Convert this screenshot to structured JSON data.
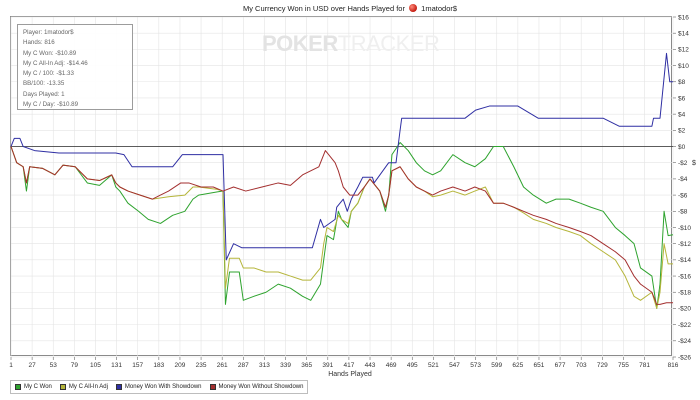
{
  "header": {
    "title_prefix": "My Currency Won in USD over Hands Played for",
    "player_name": "1matodor$"
  },
  "watermark": {
    "part1": "POKER",
    "part2": "TRACKER"
  },
  "stats": [
    "Player: 1matodor$",
    "Hands: 816",
    "My C Won: -$10.89",
    "My C All-In Adj: -$14.46",
    "My C / 100: -$1.33",
    "BB/100: -13.35",
    "Days Played: 1",
    "My C / Day: -$10.89"
  ],
  "colors": {
    "my_c_won": "#2ea32e",
    "all_in_adj": "#b5b53a",
    "with_showdown": "#2f2fa3",
    "without_showdown": "#a32f2f"
  },
  "chart_data": {
    "type": "line",
    "title": "My Currency Won in USD over Hands Played for 1matodor$",
    "xlabel": "Hands Played",
    "ylabel": "$",
    "xlim": [
      1,
      816
    ],
    "ylim": [
      -26,
      16
    ],
    "grid": true,
    "legend_position": "bottom",
    "x_ticks": [
      1,
      27,
      53,
      79,
      105,
      131,
      157,
      183,
      209,
      235,
      261,
      287,
      313,
      339,
      365,
      391,
      417,
      443,
      469,
      495,
      521,
      547,
      573,
      599,
      625,
      651,
      677,
      703,
      729,
      755,
      781,
      816
    ],
    "y_ticks": [
      16,
      14,
      12,
      10,
      8,
      6,
      4,
      2,
      0,
      -2,
      -4,
      -6,
      -8,
      -10,
      -12,
      -14,
      -16,
      -18,
      -20,
      -22,
      -24,
      -26
    ],
    "y_tick_labels": [
      "$16",
      "$14",
      "$12",
      "$10",
      "$8",
      "$6",
      "$4",
      "$2",
      "$0",
      "-$2",
      "-$4",
      "-$6",
      "-$8",
      "-$10",
      "-$12",
      "-$14",
      "-$16",
      "-$18",
      "-$20",
      "-$22",
      "-$24",
      "-$26"
    ],
    "series": [
      {
        "name": "My C Won",
        "color_key": "my_c_won",
        "points": [
          [
            1,
            0
          ],
          [
            8,
            -2
          ],
          [
            16,
            -2.5
          ],
          [
            20,
            -5.5
          ],
          [
            24,
            -2.5
          ],
          [
            40,
            -2.7
          ],
          [
            55,
            -3.5
          ],
          [
            65,
            -2.3
          ],
          [
            80,
            -2.5
          ],
          [
            95,
            -4.5
          ],
          [
            110,
            -4.8
          ],
          [
            125,
            -3.5
          ],
          [
            130,
            -5
          ],
          [
            135,
            -5.5
          ],
          [
            145,
            -7
          ],
          [
            158,
            -8
          ],
          [
            170,
            -9
          ],
          [
            185,
            -9.5
          ],
          [
            200,
            -8.5
          ],
          [
            215,
            -8
          ],
          [
            225,
            -6.5
          ],
          [
            232,
            -6
          ],
          [
            255,
            -5.6
          ],
          [
            262,
            -5.5
          ],
          [
            265,
            -19.5
          ],
          [
            270,
            -15.5
          ],
          [
            282,
            -15.5
          ],
          [
            287,
            -19
          ],
          [
            300,
            -18.5
          ],
          [
            315,
            -18
          ],
          [
            330,
            -17
          ],
          [
            345,
            -17.5
          ],
          [
            360,
            -18.5
          ],
          [
            370,
            -19
          ],
          [
            382,
            -17
          ],
          [
            386,
            -14
          ],
          [
            390,
            -11
          ],
          [
            398,
            -11.5
          ],
          [
            404,
            -8
          ],
          [
            408,
            -9
          ],
          [
            416,
            -10
          ],
          [
            420,
            -8
          ],
          [
            428,
            -7
          ],
          [
            436,
            -5
          ],
          [
            443,
            -4
          ],
          [
            455,
            -5.5
          ],
          [
            462,
            -8
          ],
          [
            466,
            -6
          ],
          [
            470,
            -1
          ],
          [
            480,
            0.5
          ],
          [
            490,
            -0.5
          ],
          [
            500,
            -2
          ],
          [
            510,
            -3
          ],
          [
            520,
            -3.5
          ],
          [
            530,
            -3
          ],
          [
            545,
            -1
          ],
          [
            560,
            -2
          ],
          [
            572,
            -2.5
          ],
          [
            585,
            -1.5
          ],
          [
            595,
            0
          ],
          [
            607,
            0
          ],
          [
            620,
            -2.5
          ],
          [
            632,
            -5
          ],
          [
            644,
            -6
          ],
          [
            660,
            -7
          ],
          [
            672,
            -6.5
          ],
          [
            688,
            -6.5
          ],
          [
            702,
            -7
          ],
          [
            715,
            -7.5
          ],
          [
            730,
            -8
          ],
          [
            745,
            -10
          ],
          [
            757,
            -11
          ],
          [
            768,
            -12
          ],
          [
            776,
            -15
          ],
          [
            790,
            -16
          ],
          [
            796,
            -20
          ],
          [
            800,
            -17
          ],
          [
            805,
            -8
          ],
          [
            810,
            -11
          ],
          [
            816,
            -10.9
          ]
        ]
      },
      {
        "name": "My C All-In Adj",
        "color_key": "all_in_adj",
        "points": [
          [
            1,
            0
          ],
          [
            8,
            -2
          ],
          [
            16,
            -2.5
          ],
          [
            20,
            -4.5
          ],
          [
            24,
            -2.5
          ],
          [
            40,
            -2.7
          ],
          [
            55,
            -3.5
          ],
          [
            65,
            -2.3
          ],
          [
            80,
            -2.5
          ],
          [
            95,
            -4
          ],
          [
            110,
            -4.2
          ],
          [
            125,
            -3.5
          ],
          [
            130,
            -4.5
          ],
          [
            135,
            -5
          ],
          [
            145,
            -5.5
          ],
          [
            160,
            -6
          ],
          [
            175,
            -6.5
          ],
          [
            195,
            -6.2
          ],
          [
            215,
            -6
          ],
          [
            225,
            -5
          ],
          [
            232,
            -5
          ],
          [
            255,
            -5.3
          ],
          [
            262,
            -5.5
          ],
          [
            265,
            -17.5
          ],
          [
            270,
            -13.8
          ],
          [
            282,
            -13.8
          ],
          [
            287,
            -15
          ],
          [
            300,
            -15
          ],
          [
            315,
            -15.5
          ],
          [
            330,
            -15.5
          ],
          [
            345,
            -16
          ],
          [
            360,
            -16.5
          ],
          [
            370,
            -16.5
          ],
          [
            382,
            -15
          ],
          [
            386,
            -12
          ],
          [
            390,
            -10
          ],
          [
            398,
            -10.5
          ],
          [
            404,
            -8.5
          ],
          [
            408,
            -9
          ],
          [
            416,
            -9.5
          ],
          [
            420,
            -8
          ],
          [
            428,
            -7
          ],
          [
            436,
            -5
          ],
          [
            443,
            -4
          ],
          [
            455,
            -5.5
          ],
          [
            462,
            -7.5
          ],
          [
            466,
            -6
          ],
          [
            470,
            -3
          ],
          [
            480,
            -2.5
          ],
          [
            490,
            -4
          ],
          [
            500,
            -5
          ],
          [
            510,
            -5.5
          ],
          [
            520,
            -6.2
          ],
          [
            530,
            -6
          ],
          [
            545,
            -5.5
          ],
          [
            560,
            -6
          ],
          [
            572,
            -5.5
          ],
          [
            585,
            -5
          ],
          [
            595,
            -7
          ],
          [
            607,
            -7
          ],
          [
            620,
            -7.5
          ],
          [
            632,
            -8.2
          ],
          [
            644,
            -9
          ],
          [
            660,
            -9.5
          ],
          [
            672,
            -10
          ],
          [
            688,
            -10.5
          ],
          [
            702,
            -11
          ],
          [
            715,
            -12
          ],
          [
            730,
            -13
          ],
          [
            745,
            -14
          ],
          [
            757,
            -16
          ],
          [
            768,
            -18.5
          ],
          [
            776,
            -19
          ],
          [
            790,
            -18
          ],
          [
            796,
            -20
          ],
          [
            800,
            -18
          ],
          [
            805,
            -12
          ],
          [
            810,
            -14.5
          ],
          [
            816,
            -14.5
          ]
        ]
      },
      {
        "name": "Money Won With Showdown",
        "color_key": "with_showdown",
        "points": [
          [
            1,
            0
          ],
          [
            5,
            1
          ],
          [
            12,
            1
          ],
          [
            16,
            0
          ],
          [
            30,
            -0.5
          ],
          [
            60,
            -0.8
          ],
          [
            105,
            -0.8
          ],
          [
            130,
            -0.8
          ],
          [
            140,
            -1
          ],
          [
            150,
            -2.5
          ],
          [
            200,
            -2.5
          ],
          [
            212,
            -1
          ],
          [
            225,
            -1
          ],
          [
            250,
            -1
          ],
          [
            262,
            -1
          ],
          [
            266,
            -14
          ],
          [
            275,
            -12
          ],
          [
            285,
            -12.5
          ],
          [
            300,
            -12.5
          ],
          [
            320,
            -12.5
          ],
          [
            360,
            -12.5
          ],
          [
            372,
            -12.5
          ],
          [
            382,
            -9
          ],
          [
            386,
            -10
          ],
          [
            400,
            -9
          ],
          [
            402,
            -7.5
          ],
          [
            410,
            -6.5
          ],
          [
            415,
            -8
          ],
          [
            420,
            -6.5
          ],
          [
            428,
            -5
          ],
          [
            434,
            -3.8
          ],
          [
            440,
            -3.8
          ],
          [
            446,
            -3.8
          ],
          [
            448,
            -4.5
          ],
          [
            466,
            -2
          ],
          [
            475,
            -2
          ],
          [
            480,
            2
          ],
          [
            482,
            3.5
          ],
          [
            500,
            3.5
          ],
          [
            530,
            3.5
          ],
          [
            560,
            3.5
          ],
          [
            573,
            4.5
          ],
          [
            590,
            5
          ],
          [
            625,
            5
          ],
          [
            650,
            3.5
          ],
          [
            665,
            3.5
          ],
          [
            700,
            3.5
          ],
          [
            730,
            3.5
          ],
          [
            750,
            2.5
          ],
          [
            780,
            2.5
          ],
          [
            790,
            2.5
          ],
          [
            792,
            3.5
          ],
          [
            800,
            3.5
          ],
          [
            808,
            11.5
          ],
          [
            812,
            8
          ],
          [
            816,
            8
          ]
        ]
      },
      {
        "name": "Money Won Without Showdown",
        "color_key": "without_showdown",
        "points": [
          [
            1,
            0
          ],
          [
            8,
            -2
          ],
          [
            16,
            -2.5
          ],
          [
            20,
            -4.5
          ],
          [
            24,
            -2.5
          ],
          [
            40,
            -2.7
          ],
          [
            55,
            -3.5
          ],
          [
            65,
            -2.3
          ],
          [
            80,
            -2.5
          ],
          [
            95,
            -4
          ],
          [
            110,
            -4.2
          ],
          [
            125,
            -3.5
          ],
          [
            130,
            -4.5
          ],
          [
            135,
            -5
          ],
          [
            145,
            -5.5
          ],
          [
            160,
            -6
          ],
          [
            175,
            -6.5
          ],
          [
            185,
            -6
          ],
          [
            195,
            -5.5
          ],
          [
            210,
            -4.5
          ],
          [
            220,
            -4.5
          ],
          [
            235,
            -5
          ],
          [
            250,
            -5
          ],
          [
            262,
            -5.5
          ],
          [
            275,
            -5
          ],
          [
            290,
            -5.5
          ],
          [
            310,
            -5
          ],
          [
            330,
            -4.5
          ],
          [
            345,
            -4.8
          ],
          [
            360,
            -3.5
          ],
          [
            370,
            -3
          ],
          [
            380,
            -2.5
          ],
          [
            388,
            -0.5
          ],
          [
            392,
            -1
          ],
          [
            400,
            -2
          ],
          [
            404,
            -3
          ],
          [
            410,
            -5
          ],
          [
            418,
            -6
          ],
          [
            428,
            -6
          ],
          [
            436,
            -5
          ],
          [
            443,
            -4
          ],
          [
            455,
            -5.5
          ],
          [
            462,
            -7.5
          ],
          [
            466,
            -6
          ],
          [
            470,
            -3
          ],
          [
            480,
            -2.5
          ],
          [
            490,
            -4
          ],
          [
            500,
            -5
          ],
          [
            510,
            -5.5
          ],
          [
            520,
            -6
          ],
          [
            530,
            -5.5
          ],
          [
            545,
            -5
          ],
          [
            560,
            -5.5
          ],
          [
            572,
            -5
          ],
          [
            585,
            -5.5
          ],
          [
            595,
            -7
          ],
          [
            607,
            -7
          ],
          [
            620,
            -7.5
          ],
          [
            632,
            -8
          ],
          [
            644,
            -8.5
          ],
          [
            660,
            -9
          ],
          [
            672,
            -9.5
          ],
          [
            688,
            -10
          ],
          [
            702,
            -10.5
          ],
          [
            715,
            -11
          ],
          [
            730,
            -12
          ],
          [
            745,
            -13
          ],
          [
            757,
            -14
          ],
          [
            768,
            -16
          ],
          [
            776,
            -17
          ],
          [
            790,
            -18
          ],
          [
            796,
            -19.5
          ],
          [
            800,
            -19.5
          ],
          [
            808,
            -19.3
          ],
          [
            816,
            -19.3
          ]
        ]
      }
    ]
  }
}
